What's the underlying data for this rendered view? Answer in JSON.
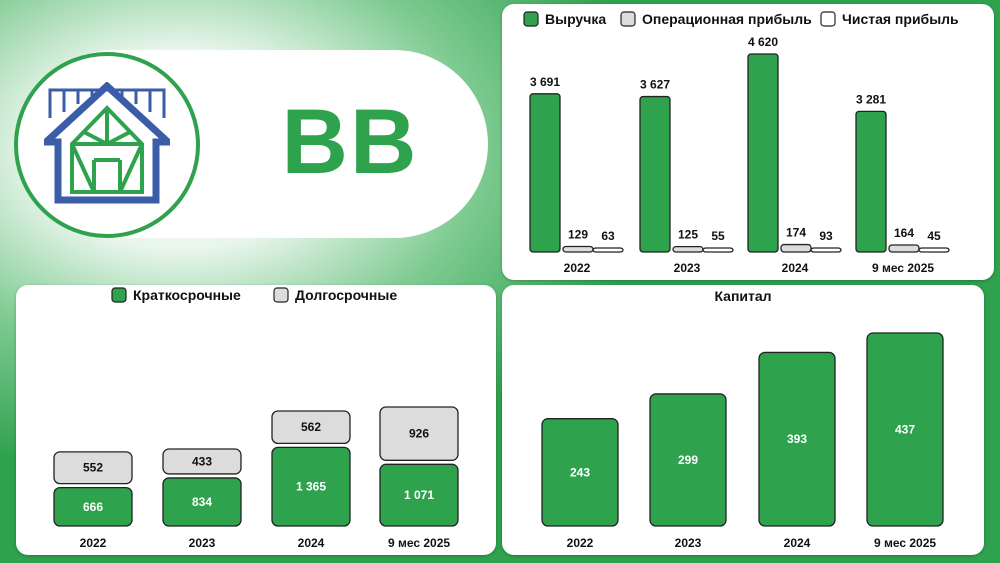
{
  "company": {
    "ticker": "BB",
    "logo_icon": "house-truss-logo-icon"
  },
  "colors": {
    "primary_green": "#2fa24e",
    "gray_fill": "#dcdcdc",
    "white_fill": "#ffffff",
    "outline": "#222222"
  },
  "chart_data": [
    {
      "id": "income",
      "type": "bar",
      "categories": [
        "2022",
        "2023",
        "2024",
        "9 мес 2025"
      ],
      "series": [
        {
          "name": "Выручка",
          "values": [
            3691,
            3627,
            4620,
            3281
          ],
          "color": "#2fa24e"
        },
        {
          "name": "Операционная прибыль",
          "values": [
            129,
            125,
            174,
            164
          ],
          "color": "#dcdcdc"
        },
        {
          "name": "Чистая прибыль",
          "values": [
            63,
            55,
            93,
            45
          ],
          "color": "#ffffff"
        }
      ],
      "labels": [
        [
          "3 691",
          "3 627",
          "4 620",
          "3 281"
        ],
        [
          "129",
          "125",
          "174",
          "164"
        ],
        [
          "63",
          "55",
          "93",
          "45"
        ]
      ],
      "legend_position": "top",
      "ylim": [
        0,
        4620
      ],
      "grid": false
    },
    {
      "id": "debt",
      "type": "bar",
      "stacked": true,
      "categories": [
        "2022",
        "2023",
        "2024",
        "9 мес 2025"
      ],
      "series": [
        {
          "name": "Краткосрочные",
          "values": [
            666,
            834,
            1365,
            1071
          ],
          "color": "#2fa24e"
        },
        {
          "name": "Долгосрочные",
          "values": [
            552,
            433,
            562,
            926
          ],
          "color": "#dcdcdc"
        }
      ],
      "labels": [
        [
          "666",
          "834",
          "1 365",
          "1 071"
        ],
        [
          "552",
          "433",
          "562",
          "926"
        ]
      ],
      "legend_position": "top",
      "grid": false
    },
    {
      "id": "capital",
      "type": "bar",
      "title": "Капитал",
      "categories": [
        "2022",
        "2023",
        "2024",
        "9 мес 2025"
      ],
      "series": [
        {
          "values": [
            243,
            299,
            393,
            437
          ],
          "color": "#2fa24e"
        }
      ],
      "labels": [
        [
          "243",
          "299",
          "393",
          "437"
        ]
      ],
      "grid": false
    }
  ]
}
